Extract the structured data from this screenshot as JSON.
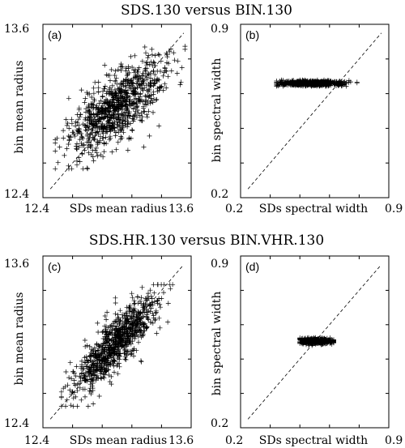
{
  "rows": [
    {
      "title": "SDS.130 versus BIN.130"
    },
    {
      "title": "SDS.HR.130 versus BIN.VHR.130"
    }
  ],
  "chart_data": [
    {
      "type": "scatter",
      "label": "(a)",
      "xlabel": "SDs mean radius",
      "ylabel": "bin mean radius",
      "xlim": [
        12.4,
        13.6
      ],
      "ylim": [
        12.4,
        13.6
      ],
      "xticks": [
        "12.4",
        "13.6"
      ],
      "yticks": [
        "13.6",
        "12.4"
      ],
      "one_to_one_line": true,
      "cloud": {
        "cx": 13.0,
        "cy": 13.03,
        "sx": 0.19,
        "sy": 0.16,
        "rho": 0.72,
        "xrange": [
          12.5,
          13.55
        ],
        "yrange": [
          12.6,
          13.5
        ]
      },
      "marker": "+",
      "n_points": 900
    },
    {
      "type": "scatter",
      "label": "(b)",
      "xlabel": "SDs spectral width",
      "ylabel": "bin spectral width",
      "xlim": [
        0.2,
        0.9
      ],
      "ylim": [
        0.2,
        0.9
      ],
      "xticks": [
        "0.2",
        "0.9"
      ],
      "yticks": [
        "0.9",
        "0.2"
      ],
      "one_to_one_line": true,
      "cloud": {
        "cx": 0.535,
        "cy": 0.662,
        "sx": 0.075,
        "sy": 0.0055,
        "rho": 0.0,
        "xrange": [
          0.37,
          0.75
        ],
        "yrange": [
          0.65,
          0.675
        ]
      },
      "marker": "+",
      "n_points": 700
    },
    {
      "type": "scatter",
      "label": "(c)",
      "xlabel": "SDs mean radius",
      "ylabel": "bin mean radius",
      "xlim": [
        12.4,
        13.6
      ],
      "ylim": [
        12.4,
        13.6
      ],
      "xticks": [
        "12.4",
        "13.6"
      ],
      "yticks": [
        "13.6",
        "12.4"
      ],
      "one_to_one_line": true,
      "cloud": {
        "cx": 13.0,
        "cy": 13.0,
        "sx": 0.17,
        "sy": 0.17,
        "rho": 0.85,
        "xrange": [
          12.55,
          13.45
        ],
        "yrange": [
          12.55,
          13.4
        ]
      },
      "marker": "+",
      "n_points": 900
    },
    {
      "type": "scatter",
      "label": "(d)",
      "xlabel": "SDs spectral width",
      "ylabel": "bin spectral width",
      "xlim": [
        0.2,
        0.9
      ],
      "ylim": [
        0.2,
        0.9
      ],
      "xticks": [
        "0.2",
        "0.9"
      ],
      "yticks": [
        "0.9",
        "0.2"
      ],
      "one_to_one_line": true,
      "cloud": {
        "cx": 0.557,
        "cy": 0.553,
        "sx": 0.04,
        "sy": 0.006,
        "rho": 0.0,
        "xrange": [
          0.48,
          0.64
        ],
        "yrange": [
          0.535,
          0.57
        ]
      },
      "marker": "+",
      "n_points": 500
    }
  ]
}
